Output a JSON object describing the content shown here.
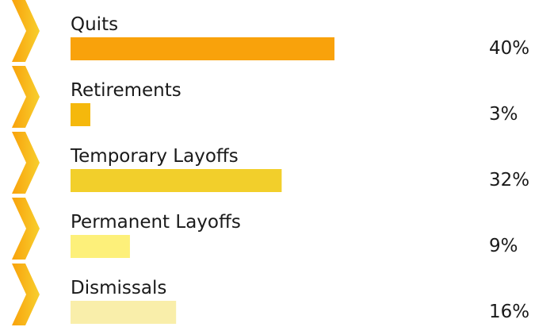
{
  "chart_data": {
    "type": "bar",
    "categories": [
      "Quits",
      "Retirements",
      "Temporary Layoffs",
      "Permanent Layoffs",
      "Dismissals"
    ],
    "values": [
      40,
      3,
      32,
      9,
      16
    ],
    "value_labels": [
      "40%",
      "3%",
      "32%",
      "9%",
      "16%"
    ],
    "colors": [
      "#f9a20b",
      "#f5b80c",
      "#f2cf2b",
      "#fdf07a",
      "#f9eeaa"
    ]
  }
}
